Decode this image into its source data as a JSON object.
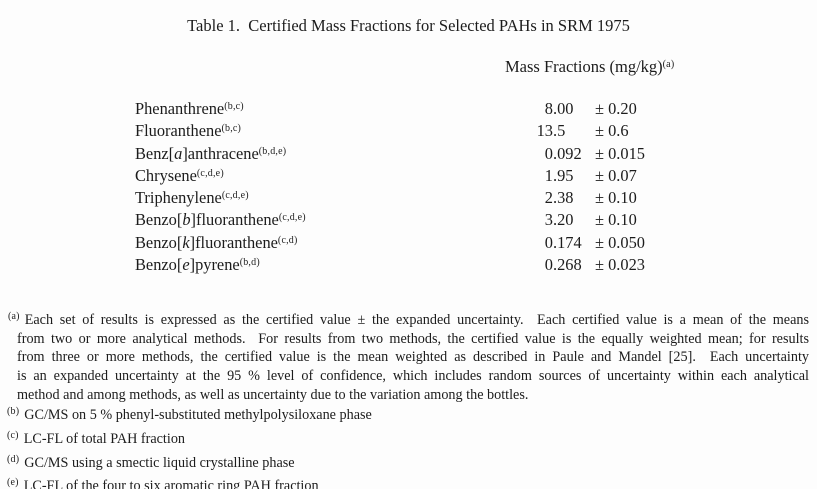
{
  "page": {
    "title": "Table 1.  Certified Mass Fractions for Selected PAHs in SRM 1975"
  },
  "table": {
    "header": {
      "label": "Mass Fractions (mg/kg)",
      "footnote_ref": "(a)"
    },
    "rows": [
      {
        "prefix": "Phenanthrene",
        "italic_letter": "",
        "suffix": "",
        "footnote_refs": "(b,c)",
        "value_int": "8",
        "value_frac": ".00",
        "uncertainty": "± 0.20"
      },
      {
        "prefix": "Fluoranthene",
        "italic_letter": "",
        "suffix": "",
        "footnote_refs": "(b,c)",
        "value_int": "13",
        "value_frac": ".5",
        "uncertainty": "± 0.6"
      },
      {
        "prefix": "Benz[",
        "italic_letter": "a",
        "suffix": "]anthracene",
        "footnote_refs": "(b,d,e)",
        "value_int": "0",
        "value_frac": ".092",
        "uncertainty": "± 0.015"
      },
      {
        "prefix": "Chrysene",
        "italic_letter": "",
        "suffix": "",
        "footnote_refs": "(c,d,e)",
        "value_int": "1",
        "value_frac": ".95",
        "uncertainty": "± 0.07"
      },
      {
        "prefix": "Triphenylene",
        "italic_letter": "",
        "suffix": "",
        "footnote_refs": "(c,d,e)",
        "value_int": "2",
        "value_frac": ".38",
        "uncertainty": "± 0.10"
      },
      {
        "prefix": "Benzo[",
        "italic_letter": "b",
        "suffix": "]fluoranthene",
        "footnote_refs": "(c,d,e)",
        "value_int": "3",
        "value_frac": ".20",
        "uncertainty": "± 0.10"
      },
      {
        "prefix": "Benzo[",
        "italic_letter": "k",
        "suffix": "]fluoranthene",
        "footnote_refs": "(c,d)",
        "value_int": "0",
        "value_frac": ".174",
        "uncertainty": "± 0.050"
      },
      {
        "prefix": "Benzo[",
        "italic_letter": "e",
        "suffix": "]pyrene",
        "footnote_refs": "(b,d)",
        "value_int": "0",
        "value_frac": ".268",
        "uncertainty": "± 0.023"
      }
    ]
  },
  "footnotes": {
    "a": {
      "marker": "(a)",
      "lines": [
        "Each set of results is expressed as the certified value ± the expanded uncertainty.  Each certified value is a mean of the means",
        "from two or more analytical methods.  For results from two methods, the certified value is the equally weighted mean; for results",
        "from three or more methods, the certified value is the mean weighted as described in Paule and Mandel [25].  Each uncertainty",
        "is an expanded uncertainty at the 95 % level of confidence, which includes random sources of uncertainty within each analytical",
        "method and among methods, as well as uncertainty due to the variation among the bottles."
      ]
    },
    "others": [
      {
        "marker": "(b)",
        "text": "GC/MS on 5 % phenyl-substituted methylpolysiloxane phase"
      },
      {
        "marker": "(c)",
        "text": "LC-FL of total PAH fraction"
      },
      {
        "marker": "(d)",
        "text": "GC/MS using a smectic liquid crystalline phase"
      },
      {
        "marker": "(e)",
        "text": "LC-FL of the four to six aromatic ring PAH fraction"
      }
    ]
  }
}
